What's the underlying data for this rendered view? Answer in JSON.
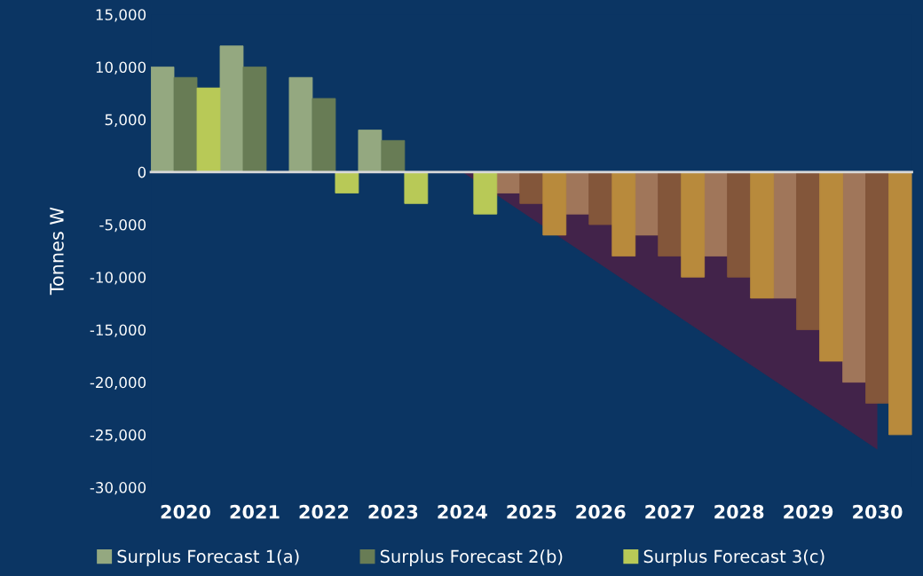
{
  "chart_data": {
    "type": "bar",
    "ylabel": "Tonnes W",
    "categories": [
      "2020",
      "2021",
      "2022",
      "2023",
      "2024",
      "2025",
      "2026",
      "2027",
      "2028",
      "2029",
      "2030"
    ],
    "series": [
      {
        "name": "Surplus Forecast 1(a)",
        "color": "#94a880",
        "values": [
          10000,
          12000,
          9000,
          4000,
          0,
          -2000,
          -4000,
          -6000,
          -8000,
          -12000,
          -20000
        ],
        "colors": [
          "#94a880",
          "#94a880",
          "#94a880",
          "#94a880",
          "#94a880",
          "#a0765a",
          "#a0765a",
          "#a0765a",
          "#a0765a",
          "#a0765a",
          "#a0765a"
        ]
      },
      {
        "name": "Surplus Forecast 2(b)",
        "color": "#687c55",
        "values": [
          9000,
          10000,
          7000,
          3000,
          0,
          -3000,
          -5000,
          -8000,
          -10000,
          -15000,
          -22000
        ],
        "colors": [
          "#687c55",
          "#687c55",
          "#687c55",
          "#687c55",
          "#687c55",
          "#83563a",
          "#83563a",
          "#83563a",
          "#83563a",
          "#83563a",
          "#83563a"
        ]
      },
      {
        "name": "Surplus Forecast 3(c)",
        "color": "#b8c957",
        "values": [
          8000,
          null,
          -2000,
          -3000,
          -4000,
          -6000,
          -8000,
          -10000,
          -12000,
          -18000,
          -25000
        ],
        "colors": [
          "#b8c957",
          "#b8c957",
          "#b8c957",
          "#b8c957",
          "#b8c957",
          "#b88a3c",
          "#b88a3c",
          "#b88a3c",
          "#b88a3c",
          "#b88a3c",
          "#b88a3c"
        ]
      },
      {
        "type": "area",
        "color": "#42234a",
        "values": [
          null,
          null,
          null,
          null,
          0,
          -4400,
          -8800,
          -13200,
          -17600,
          -22000,
          -26400
        ]
      }
    ],
    "ylim": [
      -30000,
      15000
    ],
    "yticks": [
      {
        "value": -30000,
        "label": "-30,000"
      },
      {
        "value": -25000,
        "label": "-25,000"
      },
      {
        "value": -20000,
        "label": "-20,000"
      },
      {
        "value": -15000,
        "label": "-15,000"
      },
      {
        "value": -10000,
        "label": "-10,000"
      },
      {
        "value": -5000,
        "label": "-5,000"
      },
      {
        "value": 0,
        "label": "0"
      },
      {
        "value": 5000,
        "label": "5,000"
      },
      {
        "value": 10000,
        "label": "10,000"
      },
      {
        "value": 15000,
        "label": "15,000"
      }
    ],
    "legend": "bottom"
  }
}
